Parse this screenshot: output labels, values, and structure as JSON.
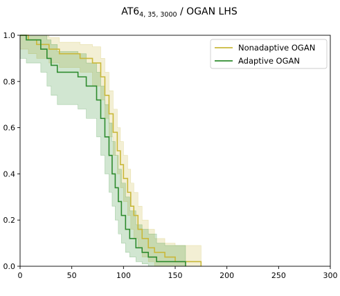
{
  "chart_data": {
    "type": "line",
    "title": {
      "base": "AT6",
      "subscript": "4, 35, 3000",
      "suffix": " / OGAN LHS"
    },
    "xlabel": "",
    "ylabel": "",
    "xlim": [
      0,
      300
    ],
    "ylim": [
      0,
      1.0
    ],
    "x_ticks": [
      "0",
      "50",
      "100",
      "150",
      "200",
      "250",
      "300"
    ],
    "y_ticks": [
      "0.0",
      "0.2",
      "0.4",
      "0.6",
      "0.8",
      "1.0"
    ],
    "grid": false,
    "legend_position": "top-right",
    "series": [
      {
        "name": "Nonadaptive OGAN",
        "color": "#c9b83a",
        "step": true,
        "x": [
          0,
          8,
          16,
          28,
          38,
          58,
          70,
          78,
          82,
          86,
          90,
          94,
          97,
          100,
          104,
          107,
          110,
          114,
          118,
          124,
          130,
          140,
          150,
          160,
          175
        ],
        "y": [
          1.0,
          0.98,
          0.96,
          0.94,
          0.92,
          0.9,
          0.88,
          0.82,
          0.74,
          0.66,
          0.58,
          0.5,
          0.44,
          0.38,
          0.32,
          0.26,
          0.22,
          0.16,
          0.12,
          0.08,
          0.06,
          0.04,
          0.02,
          0.02,
          0.0
        ],
        "ci_lower": [
          0.94,
          0.92,
          0.9,
          0.88,
          0.86,
          0.84,
          0.78,
          0.72,
          0.64,
          0.56,
          0.48,
          0.4,
          0.34,
          0.28,
          0.22,
          0.16,
          0.12,
          0.08,
          0.04,
          0.02,
          0.0,
          0.0,
          0.0,
          0.0,
          0.0
        ],
        "ci_upper": [
          1.0,
          1.0,
          1.0,
          0.99,
          0.97,
          0.96,
          0.95,
          0.9,
          0.84,
          0.76,
          0.68,
          0.6,
          0.54,
          0.48,
          0.42,
          0.36,
          0.32,
          0.26,
          0.2,
          0.16,
          0.12,
          0.1,
          0.09,
          0.09,
          0.0
        ]
      },
      {
        "name": "Adaptive OGAN",
        "color": "#2e8b2e",
        "step": true,
        "x": [
          0,
          6,
          20,
          26,
          30,
          36,
          56,
          64,
          74,
          78,
          82,
          86,
          89,
          92,
          95,
          98,
          102,
          106,
          112,
          118,
          124,
          132,
          140,
          160
        ],
        "y": [
          1.0,
          0.98,
          0.94,
          0.9,
          0.87,
          0.84,
          0.82,
          0.78,
          0.72,
          0.64,
          0.56,
          0.48,
          0.4,
          0.34,
          0.28,
          0.22,
          0.16,
          0.12,
          0.08,
          0.06,
          0.04,
          0.02,
          0.02,
          0.0
        ],
        "ci_lower": [
          0.9,
          0.88,
          0.84,
          0.78,
          0.74,
          0.7,
          0.68,
          0.64,
          0.56,
          0.48,
          0.4,
          0.32,
          0.26,
          0.2,
          0.14,
          0.1,
          0.06,
          0.04,
          0.02,
          0.01,
          0.0,
          0.0,
          0.0,
          0.0
        ],
        "ci_upper": [
          1.0,
          1.0,
          1.0,
          0.98,
          0.96,
          0.93,
          0.92,
          0.88,
          0.84,
          0.78,
          0.7,
          0.62,
          0.54,
          0.48,
          0.42,
          0.36,
          0.3,
          0.24,
          0.18,
          0.16,
          0.14,
          0.1,
          0.09,
          0.0
        ]
      }
    ]
  }
}
